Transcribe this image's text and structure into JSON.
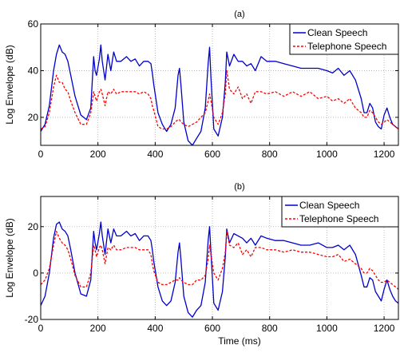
{
  "figure": {
    "xlabel_shared": "Time (ms)"
  },
  "chart_data": [
    {
      "type": "line",
      "title": "(a)",
      "xlabel": "",
      "ylabel": "Log Envelope (dB)",
      "xlim": [
        0,
        1250
      ],
      "ylim": [
        8,
        60
      ],
      "xticks": [
        0,
        200,
        400,
        600,
        800,
        1000,
        1200
      ],
      "yticks": [
        20,
        40,
        60
      ],
      "grid": true,
      "legend_position": "top-right",
      "series": [
        {
          "name": "Clean Speech",
          "color": "#0000cc",
          "style": "solid",
          "x": [
            0,
            15,
            30,
            45,
            55,
            65,
            75,
            85,
            95,
            105,
            120,
            140,
            160,
            175,
            185,
            190,
            195,
            205,
            210,
            215,
            225,
            235,
            245,
            255,
            265,
            280,
            300,
            315,
            330,
            345,
            360,
            375,
            385,
            390,
            395,
            410,
            425,
            440,
            455,
            470,
            480,
            485,
            490,
            500,
            515,
            530,
            545,
            560,
            575,
            585,
            590,
            595,
            605,
            620,
            635,
            645,
            650,
            660,
            675,
            690,
            705,
            720,
            735,
            750,
            770,
            790,
            820,
            850,
            880,
            910,
            940,
            970,
            1000,
            1020,
            1040,
            1060,
            1080,
            1100,
            1120,
            1130,
            1140,
            1150,
            1160,
            1170,
            1180,
            1190,
            1200,
            1210,
            1220,
            1230,
            1240,
            1250
          ],
          "y": [
            14,
            17,
            25,
            40,
            47,
            51,
            48,
            47,
            44,
            38,
            29,
            21,
            19,
            24,
            46,
            40,
            38,
            45,
            51,
            44,
            36,
            47,
            40,
            48,
            44,
            44,
            46,
            44,
            45,
            42,
            44,
            44,
            43,
            39,
            34,
            22,
            17,
            14,
            17,
            24,
            38,
            41,
            34,
            18,
            10,
            8,
            11,
            14,
            24,
            43,
            50,
            37,
            15,
            12,
            20,
            35,
            48,
            42,
            47,
            44,
            44,
            42,
            43,
            40,
            46,
            44,
            44,
            43,
            42,
            41,
            41,
            41,
            40,
            39,
            41,
            38,
            40,
            36,
            28,
            22,
            22,
            26,
            24,
            18,
            16,
            15,
            21,
            24,
            20,
            17,
            16,
            15
          ]
        },
        {
          "name": "Telephone Speech",
          "color": "#ff0000",
          "style": "dashed",
          "x": [
            0,
            15,
            30,
            45,
            55,
            65,
            75,
            85,
            95,
            105,
            120,
            140,
            160,
            175,
            185,
            190,
            195,
            205,
            210,
            215,
            225,
            235,
            245,
            255,
            265,
            280,
            300,
            315,
            330,
            345,
            360,
            375,
            385,
            390,
            395,
            410,
            425,
            440,
            455,
            470,
            480,
            485,
            490,
            500,
            515,
            530,
            545,
            560,
            575,
            585,
            590,
            595,
            605,
            620,
            635,
            645,
            650,
            660,
            675,
            690,
            705,
            720,
            735,
            750,
            770,
            790,
            820,
            850,
            880,
            910,
            940,
            970,
            1000,
            1020,
            1040,
            1060,
            1080,
            1100,
            1120,
            1130,
            1140,
            1150,
            1160,
            1170,
            1180,
            1190,
            1200,
            1210,
            1220,
            1230,
            1240,
            1250
          ],
          "y": [
            15,
            16,
            22,
            33,
            38,
            35,
            35,
            32,
            31,
            27,
            22,
            17,
            17,
            22,
            31,
            29,
            27,
            31,
            32,
            30,
            25,
            31,
            30,
            32,
            30,
            31,
            31,
            31,
            31,
            30,
            31,
            30,
            28,
            25,
            23,
            16,
            15,
            15,
            16,
            18,
            19,
            19,
            18,
            17,
            16,
            17,
            18,
            20,
            22,
            27,
            30,
            27,
            20,
            17,
            22,
            30,
            40,
            32,
            30,
            33,
            28,
            30,
            26,
            31,
            31,
            30,
            31,
            29,
            31,
            29,
            31,
            28,
            29,
            27,
            28,
            26,
            28,
            24,
            22,
            20,
            20,
            23,
            22,
            20,
            18,
            17,
            18,
            19,
            18,
            17,
            16,
            15
          ]
        }
      ]
    },
    {
      "type": "line",
      "title": "(b)",
      "xlabel": "Time (ms)",
      "ylabel": "Log Envelope (dB)",
      "xlim": [
        0,
        1250
      ],
      "ylim": [
        -20,
        33
      ],
      "xticks": [
        0,
        200,
        400,
        600,
        800,
        1000,
        1200
      ],
      "yticks": [
        -20,
        0,
        20
      ],
      "grid": true,
      "legend_position": "top-right",
      "series": [
        {
          "name": "Clean Speech",
          "color": "#0000cc",
          "style": "solid",
          "x": [
            0,
            15,
            30,
            45,
            55,
            65,
            75,
            85,
            95,
            105,
            120,
            140,
            160,
            175,
            185,
            190,
            195,
            205,
            210,
            215,
            225,
            235,
            245,
            255,
            265,
            280,
            300,
            315,
            330,
            345,
            360,
            375,
            385,
            390,
            395,
            410,
            425,
            440,
            455,
            470,
            480,
            485,
            490,
            500,
            515,
            530,
            545,
            560,
            575,
            585,
            590,
            595,
            605,
            620,
            635,
            645,
            650,
            660,
            675,
            690,
            705,
            720,
            735,
            750,
            770,
            790,
            820,
            850,
            880,
            910,
            940,
            970,
            1000,
            1020,
            1040,
            1060,
            1080,
            1100,
            1120,
            1130,
            1140,
            1150,
            1160,
            1170,
            1180,
            1190,
            1200,
            1210,
            1220,
            1230,
            1240,
            1250
          ],
          "y": [
            -14,
            -10,
            0,
            15,
            21,
            22,
            19,
            18,
            16,
            10,
            0,
            -9,
            -10,
            -3,
            18,
            13,
            10,
            17,
            22,
            16,
            8,
            19,
            13,
            19,
            16,
            16,
            18,
            16,
            17,
            14,
            16,
            16,
            14,
            10,
            5,
            -6,
            -12,
            -14,
            -12,
            -4,
            9,
            13,
            6,
            -10,
            -17,
            -19,
            -16,
            -14,
            -4,
            14,
            20,
            9,
            -13,
            -16,
            -8,
            7,
            19,
            13,
            17,
            16,
            15,
            13,
            15,
            12,
            16,
            15,
            14,
            14,
            13,
            12,
            12,
            13,
            11,
            11,
            12,
            10,
            12,
            8,
            -1,
            -6,
            -6,
            -2,
            -3,
            -8,
            -10,
            -12,
            -7,
            -3,
            -7,
            -10,
            -12,
            -13
          ]
        },
        {
          "name": "Telephone Speech",
          "color": "#ff0000",
          "style": "dashed",
          "x": [
            0,
            15,
            30,
            45,
            55,
            65,
            75,
            85,
            95,
            105,
            120,
            140,
            160,
            175,
            185,
            190,
            195,
            205,
            210,
            215,
            225,
            235,
            245,
            255,
            265,
            280,
            300,
            315,
            330,
            345,
            360,
            375,
            385,
            390,
            395,
            410,
            425,
            440,
            455,
            470,
            480,
            485,
            490,
            500,
            515,
            530,
            545,
            560,
            575,
            585,
            590,
            595,
            605,
            620,
            635,
            645,
            650,
            660,
            675,
            690,
            705,
            720,
            735,
            750,
            770,
            790,
            820,
            850,
            880,
            910,
            940,
            970,
            1000,
            1020,
            1040,
            1060,
            1080,
            1100,
            1120,
            1130,
            1140,
            1150,
            1160,
            1170,
            1180,
            1190,
            1200,
            1210,
            1220,
            1230,
            1240,
            1250
          ],
          "y": [
            -5,
            -3,
            2,
            12,
            18,
            15,
            13,
            12,
            10,
            6,
            -1,
            -6,
            -6,
            0,
            12,
            10,
            7,
            11,
            12,
            10,
            4,
            11,
            10,
            12,
            10,
            10,
            11,
            11,
            11,
            10,
            10,
            10,
            8,
            4,
            1,
            -4,
            -5,
            -5,
            -4,
            -3,
            -3,
            -2,
            -3,
            -4,
            -5,
            -5,
            -3,
            -3,
            -1,
            6,
            12,
            8,
            0,
            -3,
            2,
            9,
            18,
            12,
            11,
            13,
            8,
            10,
            7,
            11,
            11,
            10,
            10,
            9,
            10,
            9,
            9,
            8,
            7,
            7,
            8,
            5,
            6,
            4,
            2,
            0,
            0,
            2,
            1,
            -1,
            -3,
            -4,
            -4,
            -3,
            -4,
            -5,
            -6,
            -7
          ]
        }
      ]
    }
  ]
}
